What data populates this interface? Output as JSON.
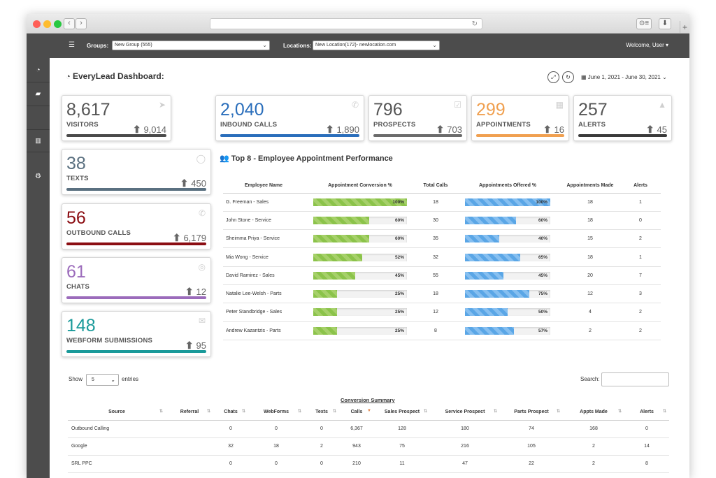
{
  "toolbar": {
    "groups_label": "Groups:",
    "groups_value": "New Group (555)",
    "locations_label": "Locations:",
    "locations_value": "New Location(172)- newlocation.com",
    "welcome": "Welcome, User"
  },
  "dashboard": {
    "title": "EveryLead Dashboard:",
    "date_range": "June 1, 2021 - June 30, 2021"
  },
  "cards": [
    {
      "key": "visitors",
      "value": "8,617",
      "label": "VISITORS",
      "trend": "9,014",
      "color": "#4a4a4a",
      "icon": "cursor-icon"
    },
    {
      "key": "inbound",
      "value": "2,040",
      "label": "INBOUND CALLS",
      "trend": "1,890",
      "color": "#2a6ebb",
      "icon": "phone-icon"
    },
    {
      "key": "prospects",
      "value": "796",
      "label": "PROSPECTS",
      "trend": "703",
      "color": "#6b6b6b",
      "icon": "check-icon"
    },
    {
      "key": "appointments",
      "value": "299",
      "label": "APPOINTMENTS",
      "trend": "16",
      "color": "#f0a050",
      "icon": "calendar-icon"
    },
    {
      "key": "alerts",
      "value": "257",
      "label": "ALERTS",
      "trend": "45",
      "color": "#3a3a3a",
      "icon": "warning-icon"
    },
    {
      "key": "texts",
      "value": "38",
      "label": "TEXTS",
      "trend": "450",
      "color": "#5a7080",
      "icon": "speech-bubble-icon"
    },
    {
      "key": "outbound",
      "value": "56",
      "label": "OUTBOUND CALLS",
      "trend": "6,179",
      "color": "#8b0d12",
      "icon": "phone-icon"
    },
    {
      "key": "chats",
      "value": "61",
      "label": "CHATS",
      "trend": "12",
      "color": "#9b6bbb",
      "icon": "chat-bubbles-icon"
    },
    {
      "key": "webform",
      "value": "148",
      "label": "WEBFORM SUBMISSIONS",
      "trend": "95",
      "color": "#1a9a9a",
      "icon": "envelope-icon"
    }
  ],
  "performance": {
    "title": "Top 8 - Employee Appointment Performance",
    "headers": [
      "Employee Name",
      "Appointment Conversion %",
      "Total Calls",
      "Appointments Offered %",
      "Appointments Made",
      "Alerts"
    ],
    "rows": [
      {
        "name": "G. Freeman - Sales",
        "conv": "100%",
        "conv_pct": 100,
        "calls": "18",
        "offered": "100%",
        "offered_pct": 100,
        "made": "18",
        "alerts": "1"
      },
      {
        "name": "John Stone - Service",
        "conv": "60%",
        "conv_pct": 60,
        "calls": "30",
        "offered": "60%",
        "offered_pct": 60,
        "made": "18",
        "alerts": "0"
      },
      {
        "name": "Sheimma Priya - Service",
        "conv": "60%",
        "conv_pct": 60,
        "calls": "35",
        "offered": "40%",
        "offered_pct": 40,
        "made": "15",
        "alerts": "2"
      },
      {
        "name": "Mia Wong - Service",
        "conv": "52%",
        "conv_pct": 52,
        "calls": "32",
        "offered": "65%",
        "offered_pct": 65,
        "made": "18",
        "alerts": "1"
      },
      {
        "name": "David Ramirez - Sales",
        "conv": "45%",
        "conv_pct": 45,
        "calls": "55",
        "offered": "45%",
        "offered_pct": 45,
        "made": "20",
        "alerts": "7"
      },
      {
        "name": "Natalie Lee-Welsh - Parts",
        "conv": "25%",
        "conv_pct": 25,
        "calls": "18",
        "offered": "75%",
        "offered_pct": 75,
        "made": "12",
        "alerts": "3"
      },
      {
        "name": "Peter Standbridge - Sales",
        "conv": "25%",
        "conv_pct": 25,
        "calls": "12",
        "offered": "50%",
        "offered_pct": 50,
        "made": "4",
        "alerts": "2"
      },
      {
        "name": "Andrew Kazantzis - Parts",
        "conv": "25%",
        "conv_pct": 25,
        "calls": "8",
        "offered": "57%",
        "offered_pct": 57,
        "made": "2",
        "alerts": "2"
      }
    ]
  },
  "conversion": {
    "show_label": "Show",
    "show_value": "5",
    "entries_label": "entries",
    "search_label": "Search:",
    "caption": "Conversion Summary",
    "headers": [
      "Source",
      "Referral",
      "Chats",
      "WebForms",
      "Texts",
      "Calls",
      "Sales Prospect",
      "Service Prospect",
      "Parts Prospect",
      "Appts Made",
      "Alerts"
    ],
    "rows": [
      [
        "Outbound Calling",
        "",
        "0",
        "0",
        "0",
        "6,367",
        "128",
        "180",
        "74",
        "168",
        "0"
      ],
      [
        "Google",
        "",
        "32",
        "18",
        "2",
        "943",
        "75",
        "216",
        "105",
        "2",
        "14"
      ],
      [
        "SRL PPC",
        "",
        "0",
        "0",
        "0",
        "210",
        "11",
        "47",
        "22",
        "2",
        "8"
      ]
    ]
  }
}
